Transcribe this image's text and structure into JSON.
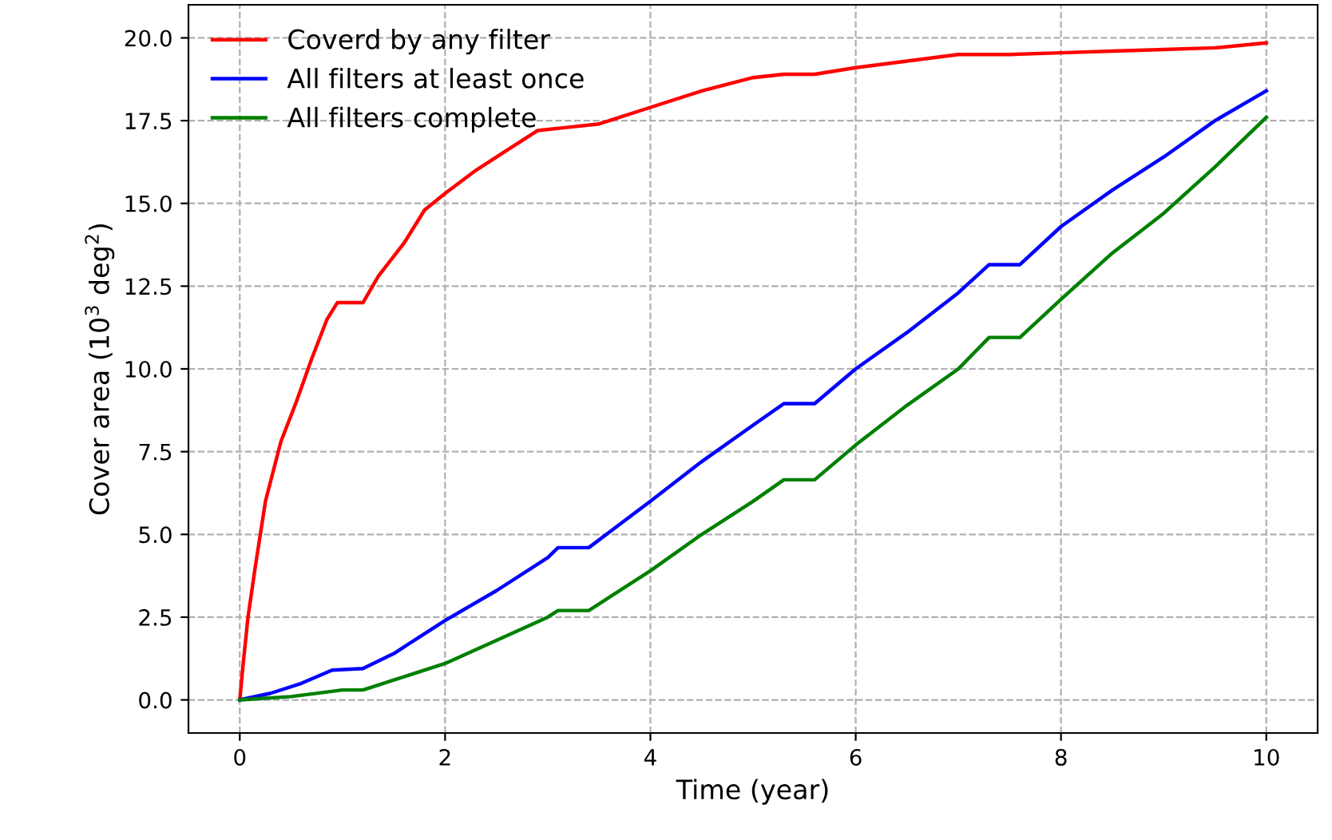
{
  "chart_data": {
    "type": "line",
    "xlabel": "Time (year)",
    "ylabel": "Cover area (10$^{3}$ deg$^{2}$)",
    "xlim": [
      -0.5,
      10.5
    ],
    "ylim": [
      -1,
      21
    ],
    "xticks": [
      0,
      2,
      4,
      6,
      8,
      10
    ],
    "yticks": [
      {
        "value": 0,
        "label": "0.0"
      },
      {
        "value": 2.5,
        "label": "2.5"
      },
      {
        "value": 5,
        "label": "5.0"
      },
      {
        "value": 7.5,
        "label": "7.5"
      },
      {
        "value": 10,
        "label": "10.0"
      },
      {
        "value": 12.5,
        "label": "12.5"
      },
      {
        "value": 15,
        "label": "15.0"
      },
      {
        "value": 17.5,
        "label": "17.5"
      },
      {
        "value": 20,
        "label": "20.0"
      }
    ],
    "grid": true,
    "legend": "top left",
    "line_style": "solid",
    "marker": "none",
    "series": [
      {
        "name": "Coverd by any filter",
        "color": "#ff0000",
        "x": [
          0,
          0.03,
          0.08,
          0.15,
          0.25,
          0.4,
          0.55,
          0.7,
          0.85,
          0.95,
          1.2,
          1.35,
          1.6,
          1.8,
          2.0,
          2.3,
          2.6,
          2.9,
          3.2,
          3.5,
          4.0,
          4.5,
          5.0,
          5.3,
          5.6,
          6.0,
          6.5,
          7.0,
          7.5,
          8.0,
          8.5,
          9.0,
          9.5,
          10
        ],
        "values": [
          0,
          1,
          2.5,
          4,
          6,
          7.8,
          9,
          10.3,
          11.5,
          12,
          12,
          12.8,
          13.8,
          14.8,
          15.3,
          16,
          16.6,
          17.2,
          17.3,
          17.4,
          17.9,
          18.4,
          18.8,
          18.9,
          18.9,
          19.1,
          19.3,
          19.5,
          19.5,
          19.55,
          19.6,
          19.65,
          19.7,
          19.85
        ]
      },
      {
        "name": "All filters at least once",
        "color": "#0000ff",
        "x": [
          0,
          0.3,
          0.6,
          0.9,
          1.2,
          1.5,
          2,
          2.5,
          3,
          3.1,
          3.4,
          4,
          4.5,
          5,
          5.3,
          5.6,
          6,
          6.5,
          7,
          7.3,
          7.6,
          8,
          8.5,
          9,
          9.5,
          10
        ],
        "values": [
          0,
          0.2,
          0.5,
          0.9,
          0.95,
          1.4,
          2.4,
          3.3,
          4.3,
          4.6,
          4.6,
          6.0,
          7.2,
          8.3,
          8.95,
          8.95,
          10,
          11.1,
          12.3,
          13.15,
          13.15,
          14.3,
          15.4,
          16.4,
          17.5,
          18.4
        ]
      },
      {
        "name": "All filters complete",
        "color": "#008000",
        "x": [
          0,
          0.5,
          1,
          1.2,
          1.5,
          2,
          2.5,
          3,
          3.1,
          3.4,
          4,
          4.5,
          5,
          5.3,
          5.6,
          6,
          6.5,
          7,
          7.3,
          7.6,
          8,
          8.5,
          9,
          9.5,
          10
        ],
        "values": [
          0,
          0.1,
          0.3,
          0.3,
          0.6,
          1.1,
          1.8,
          2.5,
          2.7,
          2.7,
          3.9,
          5,
          6,
          6.65,
          6.65,
          7.7,
          8.9,
          10,
          10.95,
          10.95,
          12.1,
          13.5,
          14.7,
          16.1,
          17.6
        ]
      }
    ]
  }
}
